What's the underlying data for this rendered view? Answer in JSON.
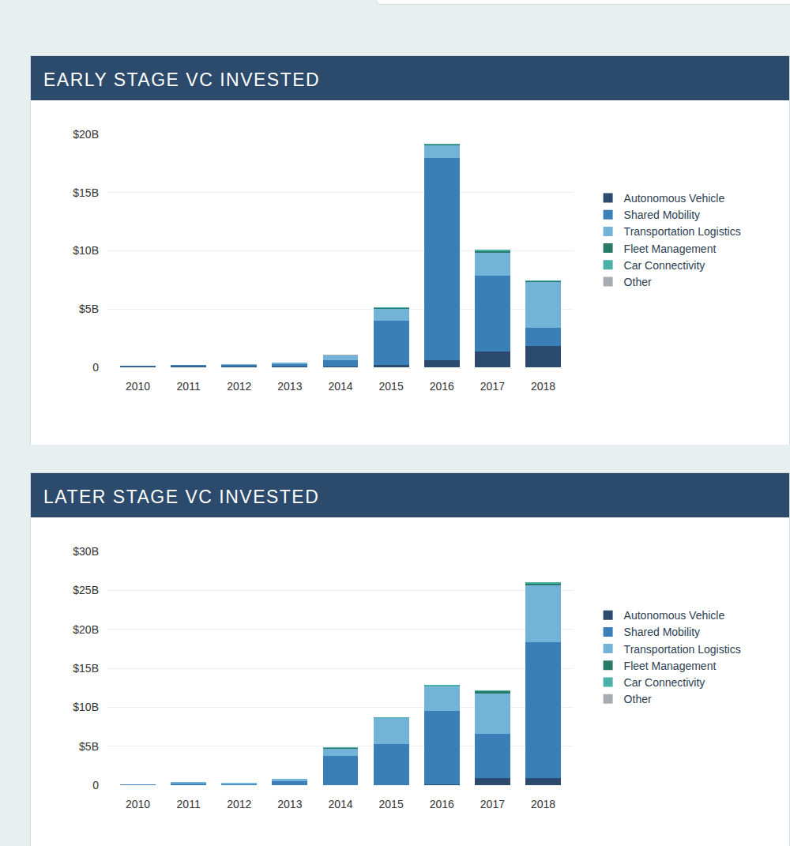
{
  "chart_data": [
    {
      "type": "bar",
      "title": "EARLY STAGE VC INVESTED",
      "categories": [
        "2010",
        "2011",
        "2012",
        "2013",
        "2014",
        "2015",
        "2016",
        "2017",
        "2018"
      ],
      "series": [
        {
          "name": "Autonomous Vehicle",
          "color": "#2c4a6e",
          "values": [
            0.05,
            0.08,
            0.1,
            0.05,
            0.1,
            0.2,
            0.6,
            1.35,
            1.85
          ]
        },
        {
          "name": "Shared Mobility",
          "color": "#3a7fb8",
          "values": [
            0.08,
            0.1,
            0.1,
            0.2,
            0.5,
            3.8,
            17.4,
            6.5,
            1.55
          ]
        },
        {
          "name": "Transportation Logistics",
          "color": "#74b3d8",
          "values": [
            0.02,
            0.02,
            0.05,
            0.15,
            0.45,
            1.0,
            1.05,
            1.95,
            3.95
          ]
        },
        {
          "name": "Fleet Management",
          "color": "#2a7a6a",
          "values": [
            0,
            0,
            0,
            0,
            0,
            0.1,
            0.1,
            0.2,
            0.05
          ]
        },
        {
          "name": "Car Connectivity",
          "color": "#4bb0a8",
          "values": [
            0,
            0,
            0,
            0,
            0,
            0.05,
            0.05,
            0.1,
            0.05
          ]
        },
        {
          "name": "Other",
          "color": "#a8adb2",
          "values": [
            0,
            0,
            0,
            0,
            0.05,
            0,
            0,
            0,
            0
          ]
        }
      ],
      "ylim": [
        0,
        20
      ],
      "yticks": [
        0,
        {
          "value": 5,
          "label": "$5B"
        },
        {
          "value": 10,
          "label": "$10B"
        },
        {
          "value": 15,
          "label": "$15B"
        },
        {
          "value": 20,
          "label": "$20B"
        }
      ],
      "grid": true,
      "stacked": true,
      "legend": "right"
    },
    {
      "type": "bar",
      "title": "LATER STAGE VC INVESTED",
      "categories": [
        "2010",
        "2011",
        "2012",
        "2013",
        "2014",
        "2015",
        "2016",
        "2017",
        "2018"
      ],
      "series": [
        {
          "name": "Autonomous Vehicle",
          "color": "#2c4a6e",
          "values": [
            0,
            0,
            0,
            0,
            0.05,
            0,
            0.1,
            0.9,
            0.9
          ]
        },
        {
          "name": "Shared Mobility",
          "color": "#3a7fb8",
          "values": [
            0.1,
            0.2,
            0.15,
            0.5,
            3.7,
            5.25,
            9.4,
            5.7,
            17.45
          ]
        },
        {
          "name": "Transportation Logistics",
          "color": "#74b3d8",
          "values": [
            0,
            0.2,
            0.2,
            0.3,
            0.9,
            3.35,
            3.15,
            5.15,
            7.3
          ]
        },
        {
          "name": "Fleet Management",
          "color": "#2a7a6a",
          "values": [
            0,
            0,
            0,
            0,
            0.1,
            0,
            0.05,
            0.3,
            0.15
          ]
        },
        {
          "name": "Car Connectivity",
          "color": "#4bb0a8",
          "values": [
            0,
            0,
            0,
            0,
            0.15,
            0.1,
            0.2,
            0.1,
            0.2
          ]
        },
        {
          "name": "Other",
          "color": "#a8adb2",
          "values": [
            0,
            0,
            0,
            0,
            0,
            0,
            0,
            0,
            0
          ]
        }
      ],
      "ylim": [
        0,
        30
      ],
      "yticks": [
        0,
        {
          "value": 5,
          "label": "$5B"
        },
        {
          "value": 10,
          "label": "$10B"
        },
        {
          "value": 15,
          "label": "$15B"
        },
        {
          "value": 20,
          "label": "$20B"
        },
        {
          "value": 25,
          "label": "$25B"
        },
        {
          "value": 30,
          "label": "$30B"
        }
      ],
      "grid": true,
      "stacked": true,
      "legend": "right"
    }
  ]
}
